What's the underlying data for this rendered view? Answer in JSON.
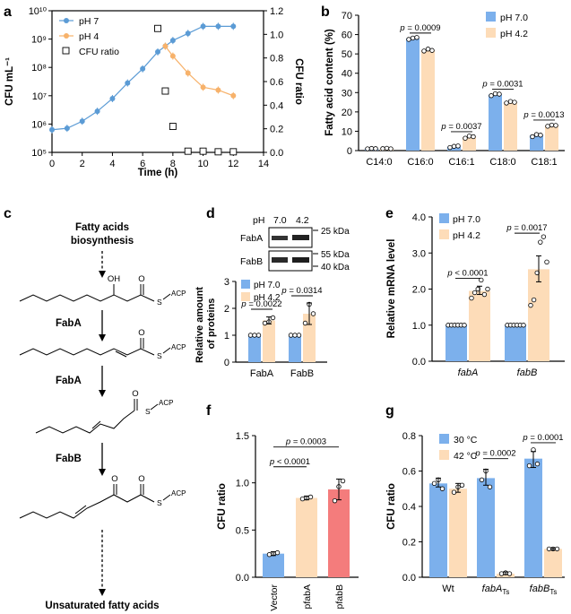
{
  "colors": {
    "blue": "#7cb0ec",
    "peach": "#fddcb8",
    "red": "#f47c7c",
    "line_blue": "#5b9bd5",
    "line_orange": "#f7b26b",
    "axis": "#000000",
    "pval_line": "#000000"
  },
  "chart_data": [
    {
      "panel": "a",
      "type": "line",
      "title": "",
      "xlabel": "Time (h)",
      "ylabel": "CFU mL⁻¹",
      "y2label": "CFU ratio",
      "xlim": [
        0,
        14
      ],
      "ylim_log10": [
        5,
        10
      ],
      "y2lim": [
        0,
        1.2
      ],
      "xticks": [
        "0",
        "2",
        "4",
        "6",
        "8",
        "10",
        "12",
        "14"
      ],
      "yticks": [
        "10⁵",
        "10⁶",
        "10⁷",
        "10⁸",
        "10⁹",
        "10¹⁰"
      ],
      "y2ticks": [
        "0.0",
        "0.2",
        "0.4",
        "0.6",
        "0.8",
        "1.0",
        "1.2"
      ],
      "series": [
        {
          "name": "pH 7",
          "x": [
            0,
            1,
            2,
            3,
            4,
            5,
            6,
            7,
            7.5,
            8,
            9,
            10,
            11,
            12
          ],
          "log10y": [
            5.8,
            5.85,
            6.1,
            6.45,
            6.9,
            7.45,
            7.95,
            8.55,
            8.75,
            8.95,
            9.2,
            9.45,
            9.45,
            9.45
          ]
        },
        {
          "name": "pH 4",
          "x": [
            7.5,
            8,
            9,
            10,
            11,
            12
          ],
          "log10y": [
            8.75,
            8.4,
            7.8,
            7.3,
            7.2,
            7.0
          ]
        },
        {
          "name": "CFU ratio",
          "x": [
            7,
            7.5,
            8,
            9,
            10,
            11,
            12
          ],
          "y": [
            1.05,
            0.52,
            0.22,
            0.01,
            0.01,
            0.005,
            0.005
          ]
        }
      ],
      "legend": [
        "pH 7",
        "pH 4",
        "CFU ratio"
      ]
    },
    {
      "panel": "b",
      "type": "bar",
      "ylabel": "Fatty acid content (%)",
      "ylim": [
        0,
        70
      ],
      "yticks": [
        "0",
        "10",
        "20",
        "30",
        "40",
        "50",
        "60",
        "70"
      ],
      "categories": [
        "C14:0",
        "C16:0",
        "C16:1",
        "C18:0",
        "C18:1"
      ],
      "series": [
        {
          "name": "pH 7.0",
          "values": [
            1,
            58,
            2,
            29,
            8
          ]
        },
        {
          "name": "pH 4.2",
          "values": [
            1,
            52,
            7,
            25,
            13
          ]
        }
      ],
      "pvalues": [
        "",
        "p = 0.0009",
        "p = 0.0037",
        "p = 0.0031",
        "p = 0.0013"
      ]
    },
    {
      "panel": "d",
      "type": "bar",
      "ylabel": "Relative amount of proteins",
      "ylim": [
        0,
        3
      ],
      "yticks": [
        "0",
        "1",
        "2",
        "3"
      ],
      "categories": [
        "FabA",
        "FabB"
      ],
      "series": [
        {
          "name": "pH 7.0",
          "values": [
            1,
            1
          ]
        },
        {
          "name": "pH 4.2",
          "values": [
            1.55,
            1.8
          ]
        }
      ],
      "pvalues": [
        "p = 0.0022",
        "p = 0.0314"
      ]
    },
    {
      "panel": "e",
      "type": "bar",
      "ylabel": "Relative mRNA level",
      "ylim": [
        0,
        4
      ],
      "yticks": [
        "0.0",
        "1.0",
        "2.0",
        "3.0",
        "4.0"
      ],
      "categories": [
        "fabA",
        "fabB"
      ],
      "series": [
        {
          "name": "pH 7.0",
          "values": [
            1,
            1
          ]
        },
        {
          "name": "pH 4.2",
          "values": [
            1.95,
            2.55
          ]
        }
      ],
      "pvalues": [
        "p < 0.0001",
        "p = 0.0017"
      ]
    },
    {
      "panel": "f",
      "type": "bar",
      "ylabel": "CFU ratio",
      "ylim": [
        0,
        1.5
      ],
      "yticks": [
        "0.0",
        "0.5",
        "1.0",
        "1.5"
      ],
      "categories": [
        "Vector",
        "pfabA",
        "pfabB"
      ],
      "values": [
        0.25,
        0.84,
        0.93
      ],
      "pvalues": [
        "p < 0.0001",
        "p = 0.0003"
      ]
    },
    {
      "panel": "g",
      "type": "bar",
      "ylabel": "CFU ratio",
      "ylim": [
        0,
        0.8
      ],
      "yticks": [
        "0.0",
        "0.2",
        "0.4",
        "0.6",
        "0.8"
      ],
      "categories": [
        "Wt",
        "fabA",
        "fabB"
      ],
      "cat_sub": [
        "",
        "Ts",
        "Ts"
      ],
      "series": [
        {
          "name": "30 °C",
          "values": [
            0.53,
            0.56,
            0.67
          ]
        },
        {
          "name": "42 °C",
          "values": [
            0.5,
            0.02,
            0.16
          ]
        }
      ],
      "pvalues": [
        "",
        "p = 0.0002",
        "p = 0.0001"
      ]
    }
  ],
  "panels": {
    "a": "a",
    "b": "b",
    "c": "c",
    "d": "d",
    "e": "e",
    "f": "f",
    "g": "g"
  },
  "pathway": {
    "top": "Fatty acids",
    "top2": "biosynthesis",
    "steps": [
      "FabA",
      "FabA",
      "FabB"
    ],
    "bottom": "Unsaturated fatty acids",
    "acp": "ACP",
    "o": "O",
    "oh": "OH",
    "s": "S"
  },
  "blot": {
    "ph_label": "pH",
    "ph1": "7.0",
    "ph2": "4.2",
    "row1": "FabA",
    "row2": "FabB",
    "kda25": "25 kDa",
    "kda55": "55 kDa",
    "kda40": "40 kDa"
  }
}
